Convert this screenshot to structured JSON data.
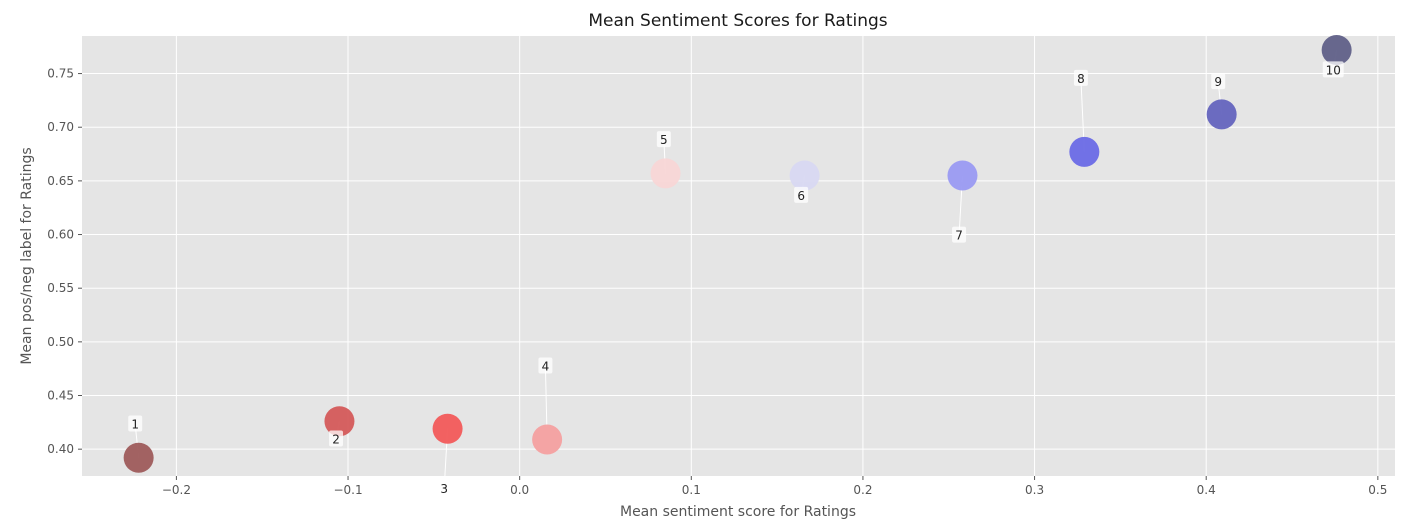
{
  "chart_data": {
    "type": "scatter",
    "title": "Mean Sentiment Scores for Ratings",
    "xlabel": "Mean sentiment score for Ratings",
    "ylabel": "Mean pos/neg label for Ratings",
    "xlim": [
      -0.255,
      0.51
    ],
    "ylim": [
      0.375,
      0.785
    ],
    "xticks": [
      -0.2,
      -0.1,
      0.0,
      0.1,
      0.2,
      0.3,
      0.4,
      0.5
    ],
    "xtick_labels": [
      "−0.2",
      "−0.1",
      "0.0",
      "0.1",
      "0.2",
      "0.3",
      "0.4",
      "0.5"
    ],
    "yticks": [
      0.4,
      0.45,
      0.5,
      0.55,
      0.6,
      0.65,
      0.7,
      0.75
    ],
    "ytick_labels": [
      "0.40",
      "0.45",
      "0.50",
      "0.55",
      "0.60",
      "0.65",
      "0.70",
      "0.75"
    ],
    "grid": true,
    "style": "ggplot",
    "background": "#e5e5e5",
    "points": [
      {
        "label": "1",
        "x": -0.222,
        "y": 0.392,
        "color": "#9e5b5b",
        "label_x": -0.224,
        "label_y": 0.423
      },
      {
        "label": "2",
        "x": -0.105,
        "y": 0.426,
        "color": "#d45a5a",
        "label_x": -0.107,
        "label_y": 0.409
      },
      {
        "label": "3",
        "x": -0.042,
        "y": 0.419,
        "color": "#f25a5a",
        "label_x": -0.044,
        "label_y": 0.363
      },
      {
        "label": "4",
        "x": 0.016,
        "y": 0.409,
        "color": "#f4a0a0",
        "label_x": 0.015,
        "label_y": 0.477
      },
      {
        "label": "5",
        "x": 0.085,
        "y": 0.657,
        "color": "#f8d6d6",
        "label_x": 0.084,
        "label_y": 0.688
      },
      {
        "label": "6",
        "x": 0.166,
        "y": 0.655,
        "color": "#d8d8f2",
        "label_x": 0.164,
        "label_y": 0.636
      },
      {
        "label": "7",
        "x": 0.258,
        "y": 0.655,
        "color": "#9a9af2",
        "label_x": 0.256,
        "label_y": 0.599
      },
      {
        "label": "8",
        "x": 0.329,
        "y": 0.677,
        "color": "#6a6ae6",
        "label_x": 0.327,
        "label_y": 0.745
      },
      {
        "label": "9",
        "x": 0.409,
        "y": 0.712,
        "color": "#6464be",
        "label_x": 0.407,
        "label_y": 0.742
      },
      {
        "label": "10",
        "x": 0.476,
        "y": 0.772,
        "color": "#606088",
        "label_x": 0.474,
        "label_y": 0.753
      }
    ]
  }
}
